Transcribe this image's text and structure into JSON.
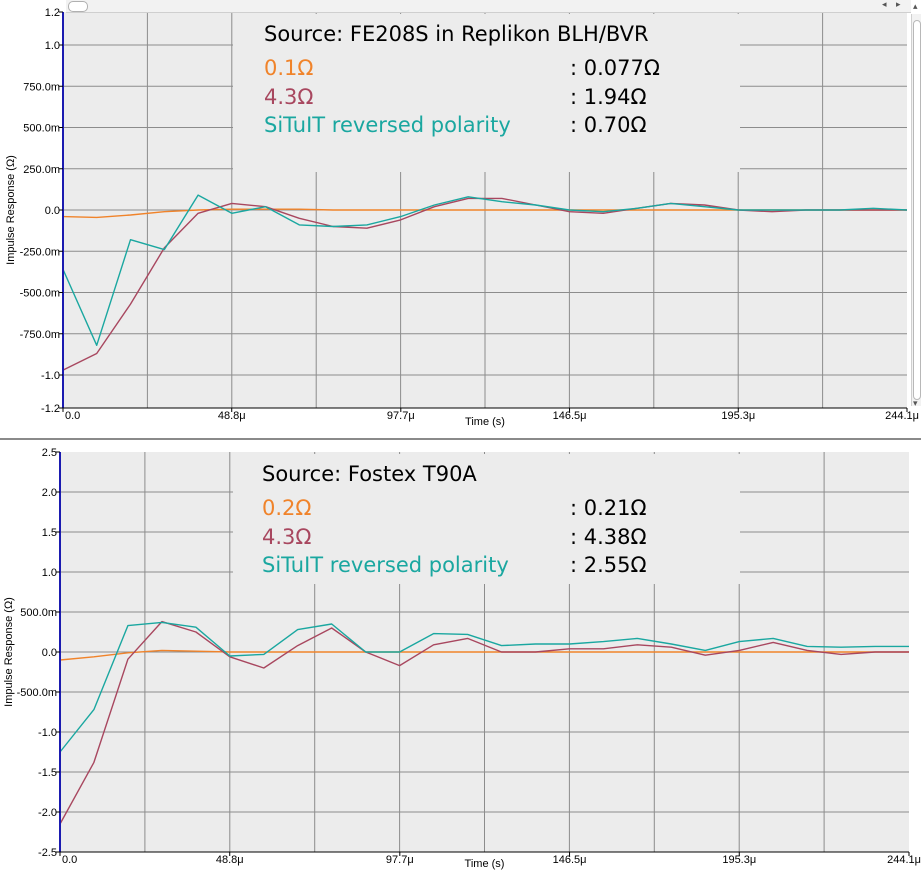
{
  "colors": {
    "plot_bg": "#ececec",
    "grid": "#8c8c8c",
    "legend_bg": "#ececec",
    "series_orange": "#f0832a",
    "series_maroon": "#a8475f",
    "series_teal": "#1aa7a0",
    "left_axis": "#1b1bb0"
  },
  "icons": {
    "scroll_up": "scroll-up-arrow-icon",
    "scroll_down": "scroll-down-arrow-icon",
    "scroll_left": "scroll-left-arrow-icon",
    "scroll_right": "scroll-right-arrow-icon"
  },
  "chart_data": [
    {
      "type": "line",
      "title": "Source: FE208S in Replikon BLH/BVR",
      "xlabel": "Time (s)",
      "ylabel": "Impulse Response (Ω)",
      "xlim": [
        0,
        244.1
      ],
      "ylim": [
        -1.2,
        1.2
      ],
      "x_ticks": [
        "0.0",
        "48.8μ",
        "97.7μ",
        "146.5μ",
        "195.3μ",
        "244.1μ"
      ],
      "x_tick_values": [
        0,
        48.8,
        97.7,
        146.5,
        195.3,
        244.1
      ],
      "y_ticks": [
        "1.2",
        "1.0",
        "750.0m",
        "500.0m",
        "250.0m",
        "0.0",
        "-250.0m",
        "-500.0m",
        "-750.0m",
        "-1.0",
        "-1.2"
      ],
      "y_tick_values": [
        1.2,
        1.0,
        0.75,
        0.5,
        0.25,
        0.0,
        -0.25,
        -0.5,
        -0.75,
        -1.0,
        -1.2
      ],
      "grid": true,
      "legend": [
        {
          "label": "0.1Ω",
          "value": ": 0.077Ω",
          "color": "#f0832a"
        },
        {
          "label": "4.3Ω",
          "value": ": 1.94Ω",
          "color": "#a8475f"
        },
        {
          "label": "SiTuIT reversed polarity",
          "value": ": 0.70Ω",
          "color": "#1aa7a0"
        }
      ],
      "x": [
        0,
        9.76,
        19.53,
        29.29,
        39.06,
        48.82,
        58.59,
        68.35,
        78.12,
        87.88,
        97.65,
        107.41,
        117.18,
        126.94,
        136.71,
        146.47,
        156.24,
        166.0,
        175.77,
        185.53,
        195.3,
        205.06,
        214.83,
        224.59,
        234.36,
        244.1
      ],
      "series": [
        {
          "name": "0.1Ω",
          "color": "#f0832a",
          "values": [
            -0.04,
            -0.045,
            -0.03,
            -0.01,
            0.0,
            0.005,
            0.005,
            0.005,
            0.0,
            0.0,
            0.0,
            0.0,
            0.0,
            0.0,
            0.0,
            0.0,
            0.0,
            0.0,
            0.0,
            0.0,
            0.0,
            0.0,
            0.0,
            0.0,
            0.0,
            0.0
          ]
        },
        {
          "name": "4.3Ω",
          "color": "#a8475f",
          "values": [
            -0.97,
            -0.87,
            -0.57,
            -0.23,
            -0.02,
            0.04,
            0.02,
            -0.05,
            -0.1,
            -0.11,
            -0.06,
            0.02,
            0.07,
            0.07,
            0.03,
            -0.01,
            -0.02,
            0.01,
            0.04,
            0.03,
            0.0,
            -0.01,
            0.0,
            0.0,
            0.0,
            0.0
          ]
        },
        {
          "name": "SiTuIT reversed polarity",
          "color": "#1aa7a0",
          "values": [
            -0.36,
            -0.82,
            -0.18,
            -0.24,
            0.09,
            -0.02,
            0.02,
            -0.09,
            -0.1,
            -0.09,
            -0.04,
            0.03,
            0.08,
            0.05,
            0.03,
            0.0,
            -0.01,
            0.01,
            0.04,
            0.02,
            0.0,
            0.0,
            0.0,
            0.0,
            0.01,
            0.0
          ]
        }
      ]
    },
    {
      "type": "line",
      "title": "Source: Fostex T90A",
      "xlabel": "Time (s)",
      "ylabel": "Impulse Response (Ω)",
      "xlim": [
        0,
        244.1
      ],
      "ylim": [
        -2.5,
        2.5
      ],
      "x_ticks": [
        "0.0",
        "48.8μ",
        "97.7μ",
        "146.5μ",
        "195.3μ",
        "244.1μ"
      ],
      "x_tick_values": [
        0,
        48.8,
        97.7,
        146.5,
        195.3,
        244.1
      ],
      "y_ticks": [
        "2.5",
        "2.0",
        "1.5",
        "1.0",
        "500.0m",
        "0.0",
        "-500.0m",
        "-1.0",
        "-1.5",
        "-2.0",
        "-2.5"
      ],
      "y_tick_values": [
        2.5,
        2.0,
        1.5,
        1.0,
        0.5,
        0.0,
        -0.5,
        -1.0,
        -1.5,
        -2.0,
        -2.5
      ],
      "grid": true,
      "legend": [
        {
          "label": "0.2Ω",
          "value": ": 0.21Ω",
          "color": "#f0832a"
        },
        {
          "label": "4.3Ω",
          "value": ": 4.38Ω",
          "color": "#a8475f"
        },
        {
          "label": "SiTuIT reversed polarity",
          "value": ": 2.55Ω",
          "color": "#1aa7a0"
        }
      ],
      "x": [
        0,
        9.76,
        19.53,
        29.29,
        39.06,
        48.82,
        58.59,
        68.35,
        78.12,
        87.88,
        97.65,
        107.41,
        117.18,
        126.94,
        136.71,
        146.47,
        156.24,
        166.0,
        175.77,
        185.53,
        195.3,
        205.06,
        214.83,
        224.59,
        234.36,
        244.1
      ],
      "series": [
        {
          "name": "0.2Ω",
          "color": "#f0832a",
          "values": [
            -0.1,
            -0.06,
            -0.01,
            0.02,
            0.01,
            0.0,
            0.0,
            0.0,
            0.0,
            0.0,
            0.0,
            0.0,
            0.0,
            0.0,
            0.0,
            0.0,
            0.0,
            0.0,
            0.0,
            0.0,
            0.0,
            0.0,
            0.0,
            0.0,
            0.0,
            0.0
          ]
        },
        {
          "name": "4.3Ω",
          "color": "#a8475f",
          "values": [
            -2.15,
            -1.38,
            -0.09,
            0.38,
            0.25,
            -0.06,
            -0.2,
            0.08,
            0.3,
            0.0,
            -0.17,
            0.09,
            0.17,
            0.0,
            0.0,
            0.04,
            0.04,
            0.09,
            0.06,
            -0.04,
            0.02,
            0.12,
            0.02,
            -0.03,
            0.0,
            0.0
          ]
        },
        {
          "name": "SiTuIT reversed polarity",
          "color": "#1aa7a0",
          "values": [
            -1.25,
            -0.72,
            0.33,
            0.37,
            0.31,
            -0.05,
            -0.03,
            0.28,
            0.35,
            0.0,
            0.0,
            0.23,
            0.22,
            0.08,
            0.1,
            0.1,
            0.13,
            0.17,
            0.1,
            0.02,
            0.13,
            0.17,
            0.07,
            0.06,
            0.07,
            0.07
          ]
        }
      ]
    }
  ]
}
